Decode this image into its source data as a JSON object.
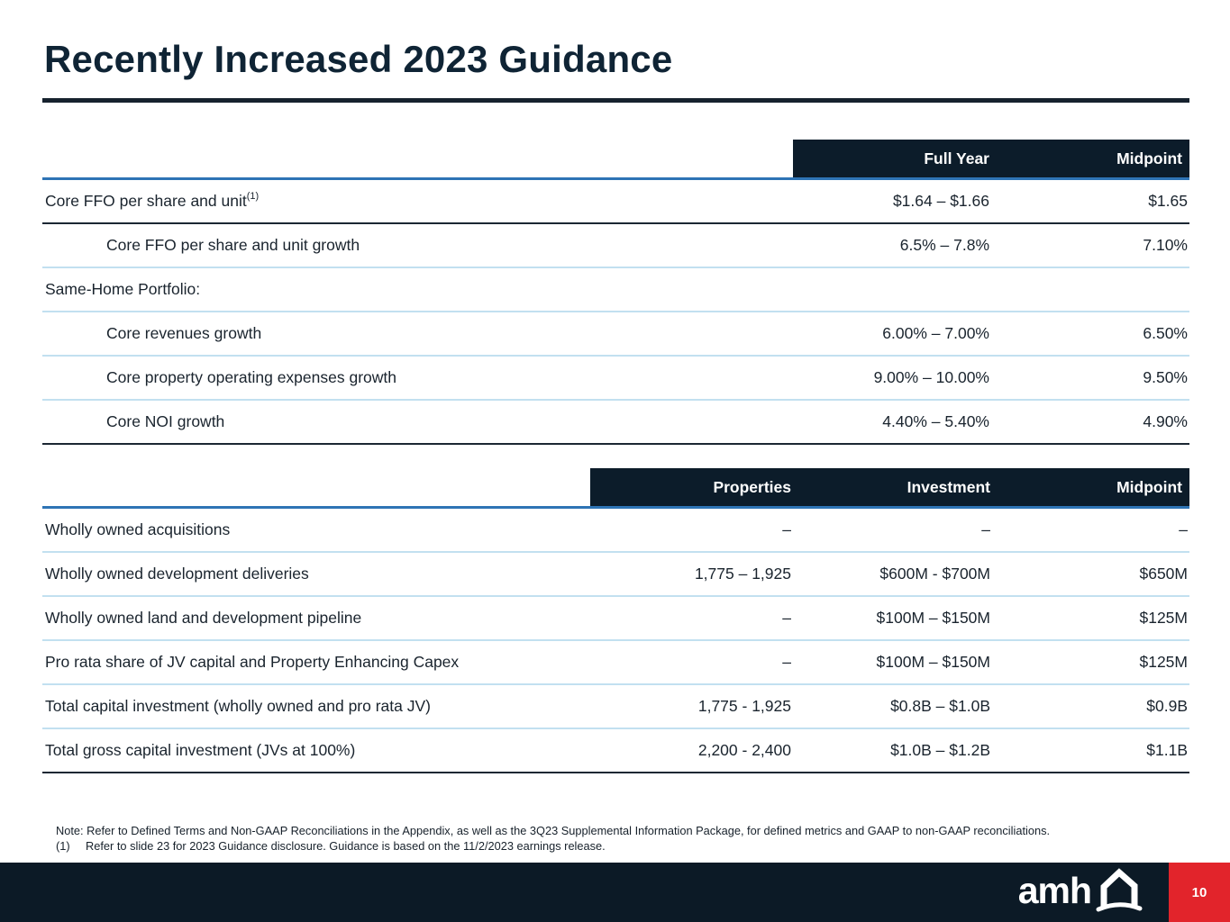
{
  "slide": {
    "title": "Recently Increased 2023 Guidance",
    "page_number": "10",
    "logo_text": "amh"
  },
  "colors": {
    "header_bg": "#0c1c2a",
    "title_text": "#0f2435",
    "blue_header_rule": "#2e74b5",
    "light_row_rule": "#c2e0f0",
    "dark_row_rule": "#1b2733",
    "footer_bg": "#0c1a26",
    "page_badge_red": "#e2242b"
  },
  "table1": {
    "headers": [
      "Full Year",
      "Midpoint"
    ],
    "rows": [
      {
        "label": "Core FFO per share and unit",
        "sup": "(1)",
        "indent": false,
        "full_year": "$1.64 – $1.66",
        "midpoint": "$1.65"
      },
      {
        "label": "Core FFO per share and unit growth",
        "indent": true,
        "full_year": "6.5% – 7.8%",
        "midpoint": "7.10%"
      },
      {
        "label": "Same-Home Portfolio:",
        "indent": false,
        "full_year": "",
        "midpoint": ""
      },
      {
        "label": "Core revenues growth",
        "indent": true,
        "full_year": "6.00% – 7.00%",
        "midpoint": "6.50%"
      },
      {
        "label": "Core property operating expenses growth",
        "indent": true,
        "full_year": "9.00% – 10.00%",
        "midpoint": "9.50%"
      },
      {
        "label": "Core NOI growth",
        "indent": true,
        "full_year": "4.40% – 5.40%",
        "midpoint": "4.90%"
      }
    ]
  },
  "table2": {
    "headers": [
      "Properties",
      "Investment",
      "Midpoint"
    ],
    "rows": [
      {
        "label": "Wholly owned acquisitions",
        "properties": "–",
        "investment": "–",
        "midpoint": "–"
      },
      {
        "label": "Wholly owned development deliveries",
        "properties": "1,775 – 1,925",
        "investment": "$600M - $700M",
        "midpoint": "$650M"
      },
      {
        "label": "Wholly owned land and development pipeline",
        "properties": "–",
        "investment": "$100M – $150M",
        "midpoint": "$125M"
      },
      {
        "label": "Pro rata share of JV capital and Property Enhancing Capex",
        "properties": "–",
        "investment": "$100M – $150M",
        "midpoint": "$125M"
      },
      {
        "label": "Total capital investment (wholly owned and pro rata JV)",
        "properties": "1,775 - 1,925",
        "investment": "$0.8B – $1.0B",
        "midpoint": "$0.9B"
      },
      {
        "label": "Total gross capital investment (JVs at 100%)",
        "properties": "2,200 - 2,400",
        "investment": "$1.0B – $1.2B",
        "midpoint": "$1.1B"
      }
    ]
  },
  "notes": {
    "note": "Note: Refer to Defined Terms and Non-GAAP Reconciliations in the Appendix, as well as the 3Q23 Supplemental Information Package, for defined metrics and GAAP to non-GAAP reconciliations.",
    "footnote_marker": "(1)",
    "footnote": "Refer to slide 23 for 2023 Guidance disclosure. Guidance is based on the 11/2/2023 earnings release."
  }
}
